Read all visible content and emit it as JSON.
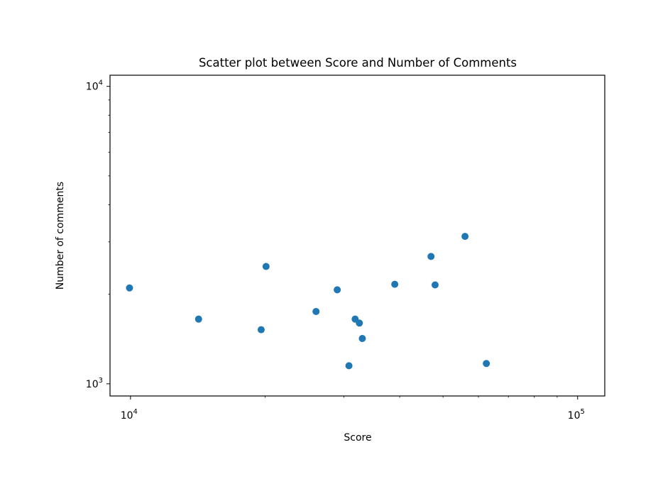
{
  "chart_data": {
    "type": "scatter",
    "title": "Scatter plot between Score and Number of Comments",
    "xlabel": "Score",
    "ylabel": "Number of comments",
    "xscale": "log",
    "yscale": "log",
    "xlim": [
      9000,
      115000
    ],
    "ylim": [
      910,
      10900
    ],
    "x_ticks": [
      {
        "value": 10000,
        "base": "10",
        "exp": "4"
      },
      {
        "value": 100000,
        "base": "10",
        "exp": "5"
      }
    ],
    "y_ticks": [
      {
        "value": 1000,
        "base": "10",
        "exp": "3"
      },
      {
        "value": 10000,
        "base": "10",
        "exp": "4"
      }
    ],
    "grid": false,
    "legend": "none",
    "marker_color": "#1f77b4",
    "points": [
      {
        "x": 9950,
        "y": 2100
      },
      {
        "x": 14200,
        "y": 1650
      },
      {
        "x": 19600,
        "y": 1520
      },
      {
        "x": 20100,
        "y": 2480
      },
      {
        "x": 26000,
        "y": 1750
      },
      {
        "x": 29000,
        "y": 2070
      },
      {
        "x": 30800,
        "y": 1150
      },
      {
        "x": 31800,
        "y": 1650
      },
      {
        "x": 32500,
        "y": 1600
      },
      {
        "x": 33000,
        "y": 1420
      },
      {
        "x": 39000,
        "y": 2160
      },
      {
        "x": 47000,
        "y": 2680
      },
      {
        "x": 48000,
        "y": 2150
      },
      {
        "x": 56000,
        "y": 3130
      },
      {
        "x": 62500,
        "y": 1170
      }
    ]
  }
}
